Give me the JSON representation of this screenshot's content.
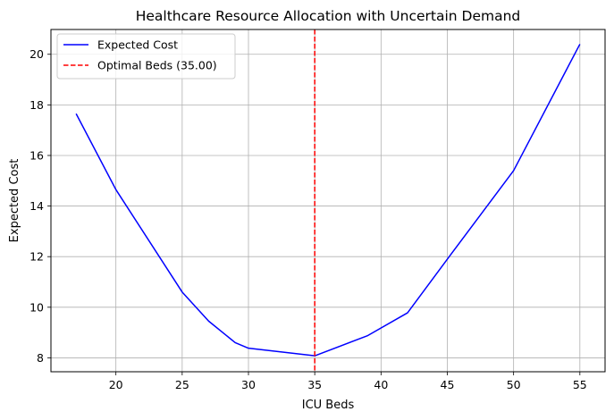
{
  "chart_data": {
    "type": "line",
    "title": "Healthcare Resource Allocation with Uncertain Demand",
    "xlabel": "ICU Beds",
    "ylabel": "Expected Cost",
    "xlim": [
      15.1,
      56.9
    ],
    "ylim": [
      7.45,
      20.98
    ],
    "xticks": [
      20,
      25,
      30,
      35,
      40,
      45,
      50,
      55
    ],
    "yticks": [
      8,
      10,
      12,
      14,
      16,
      18,
      20
    ],
    "grid": true,
    "legend_position": "top-left",
    "series": [
      {
        "name": "Expected Cost",
        "color": "#0000ff",
        "style": "solid",
        "x": [
          17,
          20,
          25,
          27,
          29,
          30,
          35,
          39,
          42,
          45,
          50,
          55
        ],
        "y": [
          17.65,
          14.65,
          10.6,
          9.45,
          8.6,
          8.38,
          8.08,
          8.88,
          9.78,
          11.9,
          15.4,
          20.4
        ]
      }
    ],
    "vlines": [
      {
        "name": "Optimal Beds (35.00)",
        "x": 35,
        "color": "#ff0000",
        "style": "dashed"
      }
    ]
  }
}
